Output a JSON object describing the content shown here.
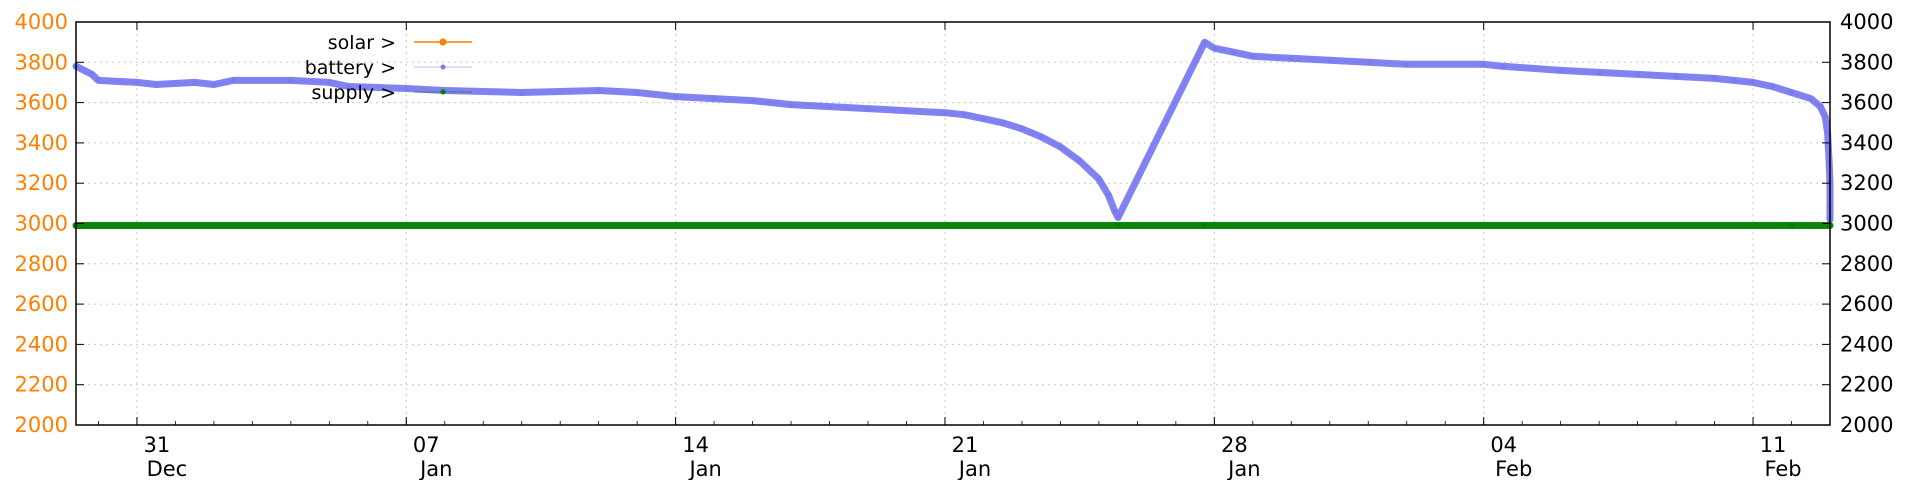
{
  "chart_data": {
    "type": "line",
    "title": "",
    "xlabel": "",
    "ylabel": "",
    "ylim": [
      2000,
      4000
    ],
    "y_ticks": [
      2000,
      2200,
      2400,
      2600,
      2800,
      3000,
      3200,
      3400,
      3600,
      3800,
      4000
    ],
    "x_range": [
      "2023-12-29T10:00",
      "2024-02-13T00:00"
    ],
    "x_ticks": [
      {
        "date": "2023-12-31",
        "day": "31",
        "month": "Dec"
      },
      {
        "date": "2024-01-07",
        "day": "07",
        "month": "Jan"
      },
      {
        "date": "2024-01-14",
        "day": "14",
        "month": "Jan"
      },
      {
        "date": "2024-01-21",
        "day": "21",
        "month": "Jan"
      },
      {
        "date": "2024-01-28",
        "day": "28",
        "month": "Jan"
      },
      {
        "date": "2024-02-04",
        "day": "04",
        "month": "Feb"
      },
      {
        "date": "2024-02-11",
        "day": "11",
        "month": "Feb"
      }
    ],
    "grid": true,
    "legend_position": "top-left",
    "series": [
      {
        "name": "solar >",
        "color": "#ff7f00",
        "points": []
      },
      {
        "name": "battery >",
        "color": "#7b7bf0",
        "points": [
          [
            "2023-12-29T10:00",
            3780
          ],
          [
            "2023-12-29T20:00",
            3740
          ],
          [
            "2023-12-30T00:00",
            3710
          ],
          [
            "2023-12-31T00:00",
            3700
          ],
          [
            "2023-12-31T12:00",
            3690
          ],
          [
            "2024-01-01T12:00",
            3700
          ],
          [
            "2024-01-02T00:00",
            3690
          ],
          [
            "2024-01-02T12:00",
            3710
          ],
          [
            "2024-01-04T00:00",
            3710
          ],
          [
            "2024-01-05T00:00",
            3700
          ],
          [
            "2024-01-05T12:00",
            3680
          ],
          [
            "2024-01-07T00:00",
            3670
          ],
          [
            "2024-01-08T00:00",
            3660
          ],
          [
            "2024-01-10T00:00",
            3650
          ],
          [
            "2024-01-12T00:00",
            3660
          ],
          [
            "2024-01-13T00:00",
            3650
          ],
          [
            "2024-01-14T00:00",
            3630
          ],
          [
            "2024-01-15T00:00",
            3620
          ],
          [
            "2024-01-16T00:00",
            3610
          ],
          [
            "2024-01-17T00:00",
            3590
          ],
          [
            "2024-01-18T00:00",
            3580
          ],
          [
            "2024-01-19T00:00",
            3570
          ],
          [
            "2024-01-20T00:00",
            3560
          ],
          [
            "2024-01-21T00:00",
            3550
          ],
          [
            "2024-01-21T12:00",
            3540
          ],
          [
            "2024-01-22T00:00",
            3520
          ],
          [
            "2024-01-22T12:00",
            3500
          ],
          [
            "2024-01-23T00:00",
            3470
          ],
          [
            "2024-01-23T12:00",
            3430
          ],
          [
            "2024-01-24T00:00",
            3380
          ],
          [
            "2024-01-24T12:00",
            3310
          ],
          [
            "2024-01-25T00:00",
            3220
          ],
          [
            "2024-01-25T06:00",
            3140
          ],
          [
            "2024-01-25T10:00",
            3060
          ],
          [
            "2024-01-25T12:00",
            3030
          ],
          [
            "2024-01-27T18:00",
            3900
          ],
          [
            "2024-01-28T00:00",
            3870
          ],
          [
            "2024-01-28T12:00",
            3850
          ],
          [
            "2024-01-29T00:00",
            3830
          ],
          [
            "2024-01-30T00:00",
            3820
          ],
          [
            "2024-01-31T00:00",
            3810
          ],
          [
            "2024-02-01T00:00",
            3800
          ],
          [
            "2024-02-02T00:00",
            3790
          ],
          [
            "2024-02-04T00:00",
            3790
          ],
          [
            "2024-02-04T12:00",
            3780
          ],
          [
            "2024-02-06T00:00",
            3760
          ],
          [
            "2024-02-07T00:00",
            3750
          ],
          [
            "2024-02-08T00:00",
            3740
          ],
          [
            "2024-02-09T00:00",
            3730
          ],
          [
            "2024-02-10T00:00",
            3720
          ],
          [
            "2024-02-10T12:00",
            3710
          ],
          [
            "2024-02-11T00:00",
            3700
          ],
          [
            "2024-02-11T12:00",
            3680
          ],
          [
            "2024-02-12T00:00",
            3650
          ],
          [
            "2024-02-12T12:00",
            3620
          ],
          [
            "2024-02-12T18:00",
            3580
          ],
          [
            "2024-02-12T21:00",
            3530
          ],
          [
            "2024-02-12T22:30",
            3450
          ],
          [
            "2024-02-12T23:30",
            3300
          ],
          [
            "2024-02-13T00:00",
            3200
          ],
          [
            "2024-02-13T00:00",
            3080
          ],
          [
            "2024-02-13T00:00",
            3020
          ],
          [
            "2024-02-13T00:00",
            3030
          ],
          [
            "2024-02-13T00:00",
            3020
          ]
        ]
      },
      {
        "name": "supply >",
        "color": "#008000",
        "points": [
          [
            "2023-12-29T10:00",
            2990
          ],
          [
            "2024-01-25T12:00",
            2990
          ],
          [
            "2024-01-27T18:00",
            2990
          ],
          [
            "2024-02-12T00:00",
            2990
          ],
          [
            "2024-02-13T00:00",
            2990
          ]
        ]
      }
    ]
  }
}
